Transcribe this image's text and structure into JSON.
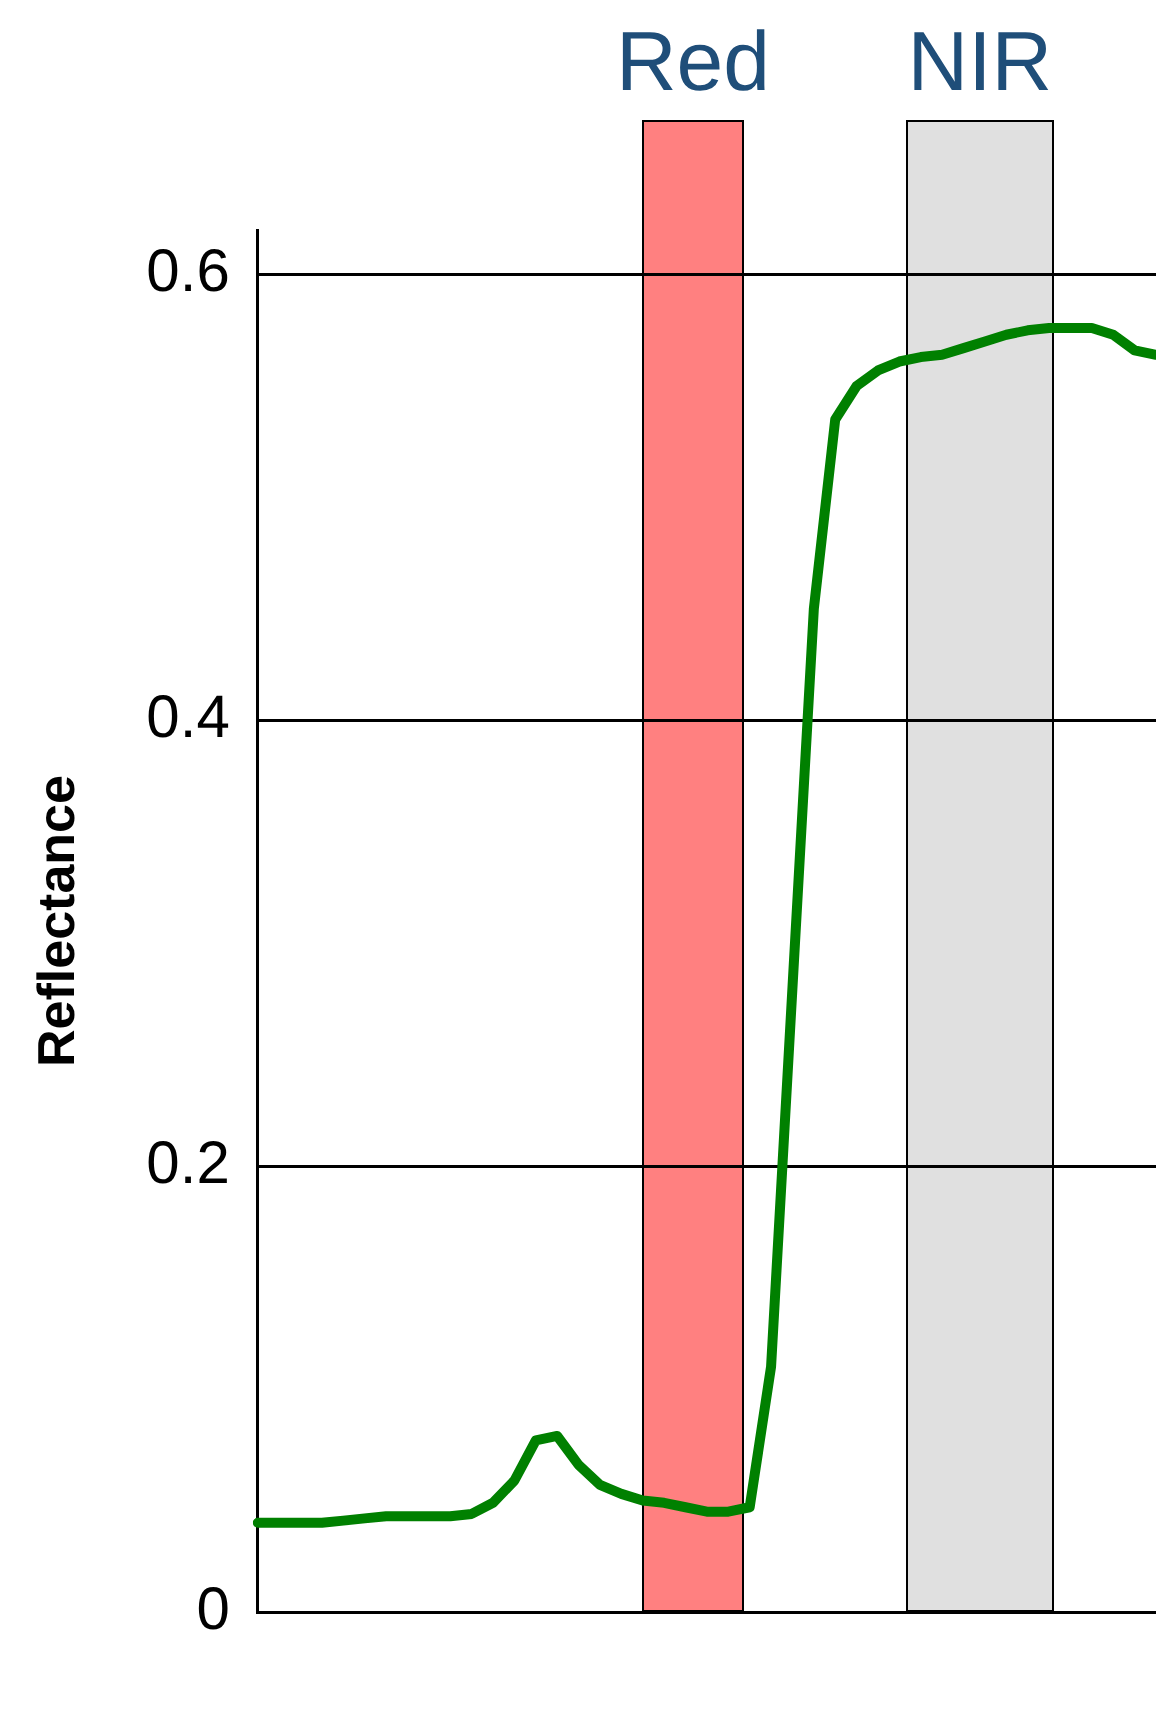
{
  "chart_data": {
    "type": "line",
    "ylabel": "Reflectance",
    "categories": [
      null,
      null,
      null,
      null,
      null,
      null,
      null,
      null,
      null,
      null,
      null,
      null,
      null,
      null,
      null,
      null,
      null,
      null,
      null,
      null,
      null,
      null,
      null,
      null,
      null,
      null,
      null,
      null,
      null,
      null,
      null,
      null,
      null,
      null,
      null,
      null,
      null,
      null,
      null,
      null,
      null,
      null,
      null
    ],
    "series": [
      {
        "color": "#008000",
        "values": [
          0.04,
          0.04,
          0.04,
          0.04,
          0.041,
          0.042,
          0.043,
          0.043,
          0.043,
          0.043,
          0.044,
          0.049,
          0.059,
          0.077,
          0.079,
          0.066,
          0.057,
          0.053,
          0.05,
          0.049,
          0.047,
          0.045,
          0.045,
          0.047,
          0.11,
          0.28,
          0.45,
          0.535,
          0.55,
          0.557,
          0.561,
          0.563,
          0.564,
          0.567,
          0.57,
          0.573,
          0.575,
          0.576,
          0.576,
          0.576,
          0.573,
          0.566,
          0.564
        ]
      }
    ],
    "ylim": [
      0,
      0.62
    ],
    "yticks": [
      0,
      0.2,
      0.4,
      0.6
    ],
    "annotations": [
      "Red",
      "NIR"
    ],
    "grid": "y",
    "legend": false,
    "marker": "none",
    "line_style": "solid",
    "tick_labels": "y"
  }
}
